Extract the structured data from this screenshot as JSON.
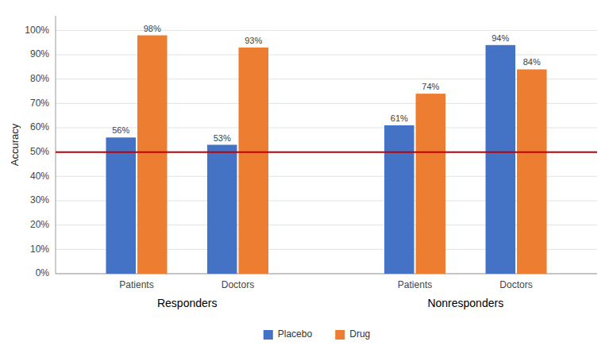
{
  "chart_data": {
    "type": "bar",
    "y_label": "Accuracy",
    "categories": [
      "Patients",
      "Doctors",
      "Patients",
      "Doctors"
    ],
    "annotations": [
      "Responders",
      "Nonresponders"
    ],
    "series": [
      {
        "name": "Placebo",
        "color": "#4472C4",
        "values": [
          56,
          53,
          61,
          94
        ],
        "value_labels": [
          "56%",
          "53%",
          "61%",
          "94%"
        ]
      },
      {
        "name": "Drug",
        "color": "#ED7D31",
        "values": [
          98,
          93,
          74,
          84
        ],
        "value_labels": [
          "98%",
          "93%",
          "74%",
          "84%"
        ]
      }
    ],
    "ylim": [
      0,
      106
    ],
    "yticks": [
      {
        "value": 0,
        "label": "0%"
      },
      {
        "value": 10,
        "label": "10%"
      },
      {
        "value": 20,
        "label": "20%"
      },
      {
        "value": 30,
        "label": "30%"
      },
      {
        "value": 40,
        "label": "40%"
      },
      {
        "value": 50,
        "label": "50%"
      },
      {
        "value": 60,
        "label": "60%"
      },
      {
        "value": 70,
        "label": "70%"
      },
      {
        "value": 80,
        "label": "80%"
      },
      {
        "value": 90,
        "label": "90%"
      },
      {
        "value": 100,
        "label": "100%"
      }
    ],
    "reference_line": {
      "value": 50,
      "color": "#C00000"
    },
    "grid": true,
    "data_labels": true,
    "legend": "lower center"
  }
}
